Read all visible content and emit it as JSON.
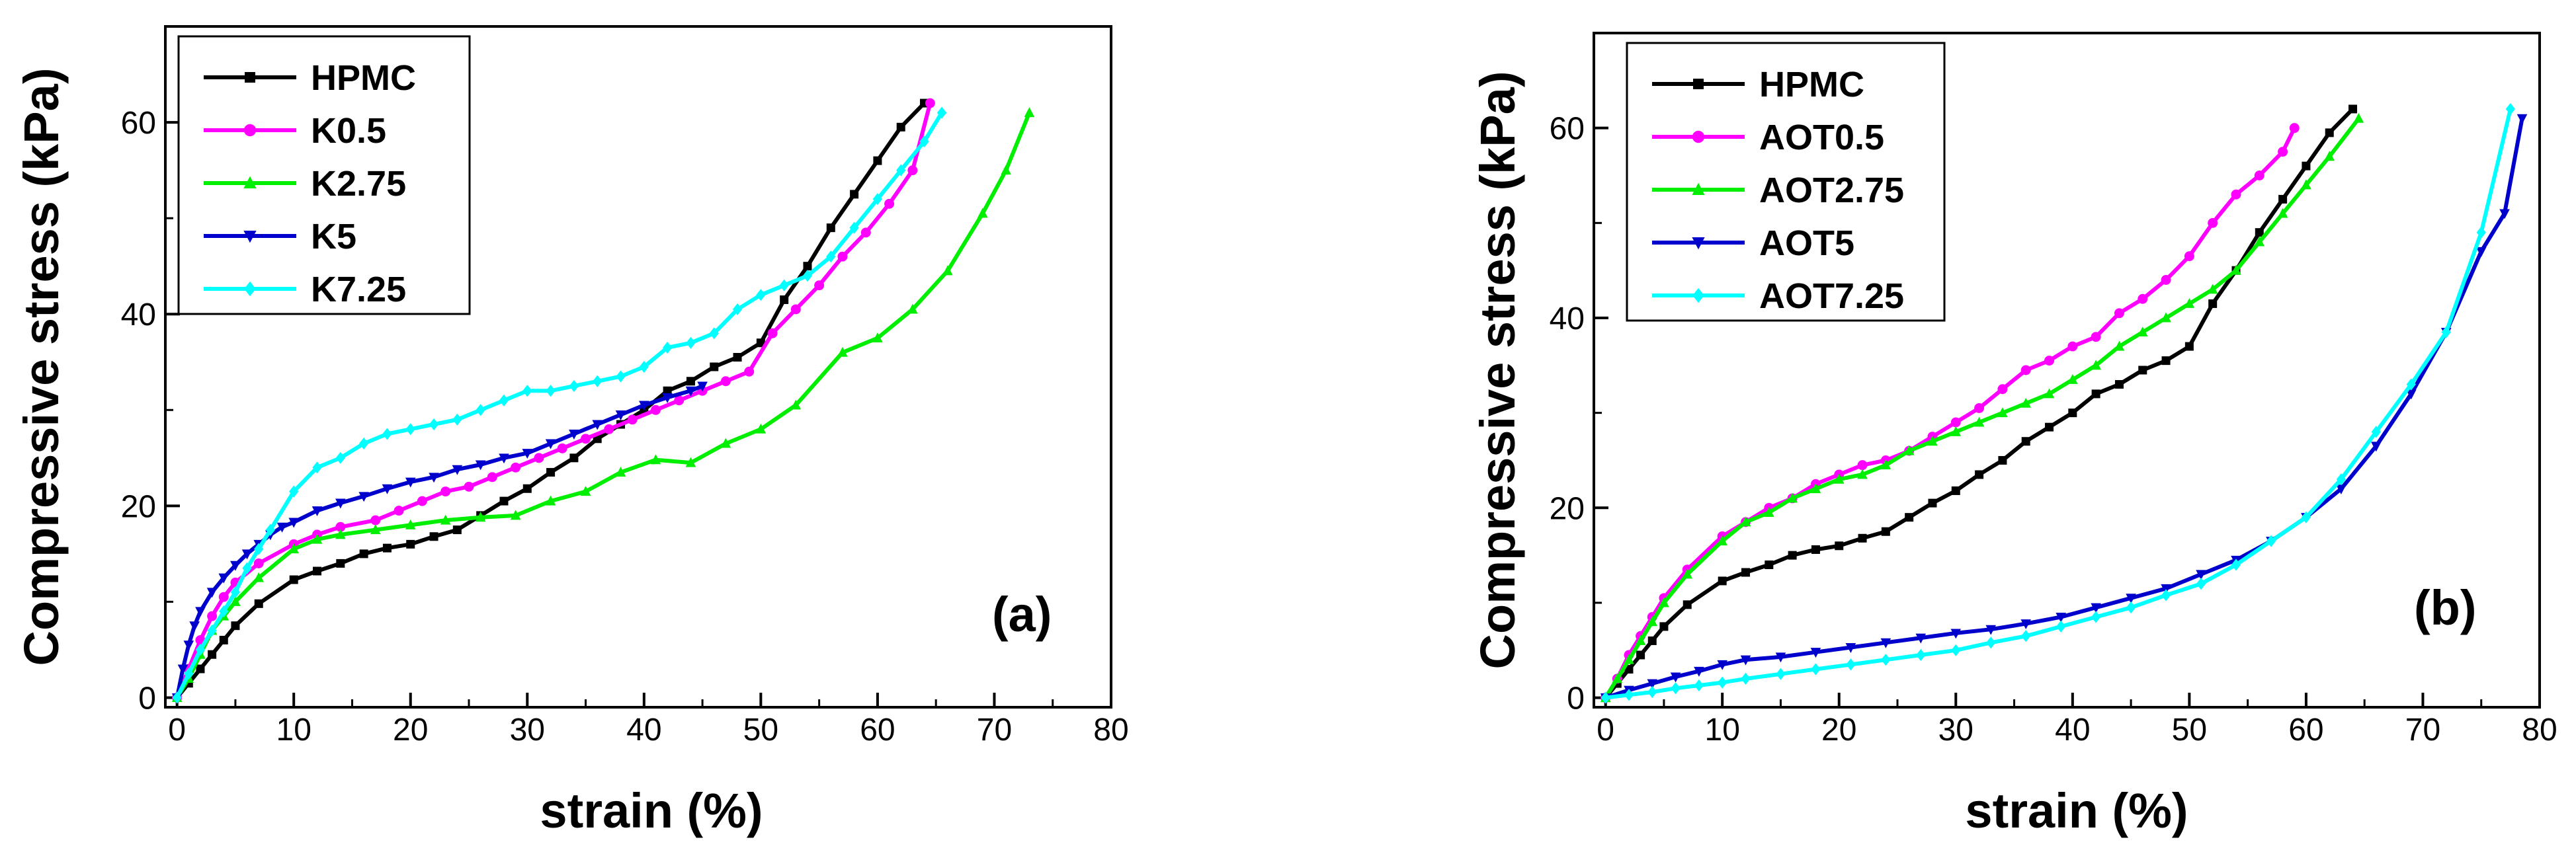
{
  "chart_data": [
    {
      "type": "line",
      "panel_label": "(a)",
      "xlabel": "strain (%)",
      "ylabel": "Compressive stress (kPa)",
      "xlim": [
        -1,
        80
      ],
      "ylim": [
        -1,
        70
      ],
      "xticks": [
        0,
        10,
        20,
        30,
        40,
        50,
        60,
        70,
        80
      ],
      "yticks": [
        0,
        20,
        40,
        60
      ],
      "legend_position": "top-left",
      "series": [
        {
          "name": "HPMC",
          "color": "#000000",
          "marker": "square",
          "x": [
            0,
            1,
            2,
            3,
            4,
            5,
            7,
            10,
            12,
            14,
            16,
            18,
            20,
            22,
            24,
            26,
            28,
            30,
            32,
            34,
            36,
            38,
            40,
            42,
            44,
            46,
            48,
            50,
            52,
            54,
            56,
            58,
            60,
            62,
            64
          ],
          "y": [
            0,
            1.5,
            3,
            4.5,
            6,
            7.5,
            9.8,
            12.3,
            13.2,
            14,
            15,
            15.6,
            16,
            16.8,
            17.5,
            19,
            20.5,
            21.8,
            23.5,
            25,
            27,
            28.5,
            30,
            32,
            33,
            34.5,
            35.5,
            37,
            41.5,
            45,
            49,
            52.5,
            56,
            59.5,
            62
          ]
        },
        {
          "name": "K0.5",
          "color": "#ff00ff",
          "marker": "circle",
          "x": [
            0,
            1,
            2,
            3,
            4,
            5,
            7,
            10,
            12,
            14,
            17,
            19,
            21,
            23,
            25,
            27,
            29,
            31,
            33,
            35,
            37,
            39,
            41,
            43,
            45,
            47,
            49,
            51,
            53,
            55,
            57,
            59,
            61,
            63,
            64.5
          ],
          "y": [
            0,
            3,
            6,
            8.5,
            10.5,
            12,
            14,
            16,
            17,
            17.8,
            18.5,
            19.5,
            20.5,
            21.5,
            22,
            23,
            24,
            25,
            26,
            27,
            28,
            29,
            30,
            31,
            32,
            33,
            34,
            38,
            40.5,
            43,
            46,
            48.5,
            51.5,
            55,
            62
          ]
        },
        {
          "name": "K2.75",
          "color": "#00ee00",
          "marker": "triangle-up",
          "x": [
            0,
            1,
            2,
            3,
            4,
            5,
            7,
            10,
            12,
            14,
            17,
            20,
            23,
            26,
            29,
            32,
            35,
            38,
            41,
            44,
            47,
            50,
            53,
            57,
            60,
            63,
            66,
            69,
            71,
            73
          ],
          "y": [
            0,
            2,
            4.5,
            7,
            8.5,
            10,
            12.5,
            15.5,
            16.5,
            17,
            17.5,
            18,
            18.5,
            18.8,
            19,
            20.5,
            21.5,
            23.5,
            24.8,
            24.5,
            26.5,
            28,
            30.5,
            36,
            37.5,
            40.5,
            44.5,
            50.5,
            55,
            61
          ]
        },
        {
          "name": "K5",
          "color": "#0000cd",
          "marker": "triangle-down",
          "x": [
            0,
            0.5,
            1,
            1.5,
            2,
            3,
            4,
            5,
            6,
            7,
            8,
            9,
            10,
            12,
            14,
            16,
            18,
            20,
            22,
            24,
            26,
            28,
            30,
            32,
            34,
            36,
            38,
            40,
            42,
            44,
            45
          ],
          "y": [
            0,
            3,
            5.5,
            7.5,
            9,
            11,
            12.5,
            13.8,
            15,
            16,
            17,
            17.8,
            18.3,
            19.5,
            20.3,
            21,
            21.8,
            22.5,
            23,
            23.8,
            24.3,
            25,
            25.5,
            26.5,
            27.5,
            28.5,
            29.5,
            30.5,
            31.3,
            32,
            32.5
          ]
        },
        {
          "name": "K7.25",
          "color": "#00ffff",
          "marker": "diamond",
          "x": [
            0,
            1,
            2,
            3,
            4,
            5,
            6,
            7,
            8,
            10,
            12,
            14,
            16,
            18,
            20,
            22,
            24,
            26,
            28,
            30,
            32,
            34,
            36,
            38,
            40,
            42,
            44,
            46,
            48,
            50,
            52,
            54,
            56,
            58,
            60,
            62,
            64,
            65.5
          ],
          "y": [
            0,
            2.5,
            5,
            7,
            9,
            11,
            13.5,
            15.5,
            17.5,
            21.5,
            24,
            25,
            26.5,
            27.5,
            28,
            28.5,
            29,
            30,
            31,
            32,
            32,
            32.5,
            33,
            33.5,
            34.5,
            36.5,
            37,
            38,
            40.5,
            42,
            43,
            44,
            46,
            49,
            52,
            55,
            58,
            61
          ]
        }
      ]
    },
    {
      "type": "line",
      "panel_label": "(b)",
      "xlabel": "strain (%)",
      "ylabel": "Compressive stress (kPa)",
      "xlim": [
        -1,
        80
      ],
      "ylim": [
        -1,
        70
      ],
      "xticks": [
        0,
        10,
        20,
        30,
        40,
        50,
        60,
        70,
        80
      ],
      "yticks": [
        0,
        20,
        40,
        60
      ],
      "legend_position": "top-left",
      "series": [
        {
          "name": "HPMC",
          "color": "#000000",
          "marker": "square",
          "x": [
            0,
            1,
            2,
            3,
            4,
            5,
            7,
            10,
            12,
            14,
            16,
            18,
            20,
            22,
            24,
            26,
            28,
            30,
            32,
            34,
            36,
            38,
            40,
            42,
            44,
            46,
            48,
            50,
            52,
            54,
            56,
            58,
            60,
            62,
            64
          ],
          "y": [
            0,
            1.5,
            3,
            4.5,
            6,
            7.5,
            9.8,
            12.3,
            13.2,
            14,
            15,
            15.6,
            16,
            16.8,
            17.5,
            19,
            20.5,
            21.8,
            23.5,
            25,
            27,
            28.5,
            30,
            32,
            33,
            34.5,
            35.5,
            37,
            41.5,
            45,
            49,
            52.5,
            56,
            59.5,
            62
          ]
        },
        {
          "name": "AOT0.5",
          "color": "#ff00ff",
          "marker": "circle",
          "x": [
            0,
            1,
            2,
            3,
            4,
            5,
            7,
            10,
            12,
            14,
            16,
            18,
            20,
            22,
            24,
            26,
            28,
            30,
            32,
            34,
            36,
            38,
            40,
            42,
            44,
            46,
            48,
            50,
            52,
            54,
            56,
            58,
            59
          ],
          "y": [
            0,
            2,
            4.5,
            6.5,
            8.5,
            10.5,
            13.5,
            17,
            18.5,
            20,
            21,
            22.5,
            23.5,
            24.5,
            25,
            26,
            27.5,
            29,
            30.5,
            32.5,
            34.5,
            35.5,
            37,
            38,
            40.5,
            42,
            44,
            46.5,
            50,
            53,
            55,
            57.5,
            60
          ]
        },
        {
          "name": "AOT2.75",
          "color": "#00ee00",
          "marker": "triangle-up",
          "x": [
            0,
            1,
            2,
            3,
            4,
            5,
            7,
            10,
            12,
            14,
            16,
            18,
            20,
            22,
            24,
            26,
            28,
            30,
            32,
            34,
            36,
            38,
            40,
            42,
            44,
            46,
            48,
            50,
            52,
            54,
            56,
            58,
            60,
            62,
            64.5
          ],
          "y": [
            0,
            2,
            4,
            6,
            8,
            10,
            13,
            16.5,
            18.5,
            19.5,
            21,
            22,
            23,
            23.5,
            24.5,
            26,
            27,
            28,
            29,
            30,
            31,
            32,
            33.5,
            35,
            37,
            38.5,
            40,
            41.5,
            43,
            45,
            48,
            51,
            54,
            57,
            61
          ]
        },
        {
          "name": "AOT5",
          "color": "#0000cd",
          "marker": "triangle-down",
          "x": [
            0,
            2,
            4,
            6,
            8,
            10,
            12,
            15,
            18,
            21,
            24,
            27,
            30,
            33,
            36,
            39,
            42,
            45,
            48,
            51,
            54,
            57,
            60,
            63,
            66,
            69,
            72,
            75,
            77,
            78.5
          ],
          "y": [
            0,
            0.8,
            1.5,
            2.2,
            2.8,
            3.5,
            4,
            4.3,
            4.8,
            5.3,
            5.8,
            6.3,
            6.8,
            7.2,
            7.8,
            8.5,
            9.5,
            10.5,
            11.5,
            13,
            14.5,
            16.5,
            19,
            22,
            26.5,
            32,
            38.5,
            47,
            51,
            61
          ]
        },
        {
          "name": "AOT7.25",
          "color": "#00ffff",
          "marker": "diamond",
          "x": [
            0,
            2,
            4,
            6,
            8,
            10,
            12,
            15,
            18,
            21,
            24,
            27,
            30,
            33,
            36,
            39,
            42,
            45,
            48,
            51,
            54,
            57,
            60,
            63,
            66,
            69,
            72,
            75,
            77.5
          ],
          "y": [
            0,
            0.3,
            0.6,
            1,
            1.3,
            1.6,
            2,
            2.5,
            3,
            3.5,
            4,
            4.5,
            5,
            5.8,
            6.5,
            7.5,
            8.5,
            9.5,
            10.8,
            12,
            14,
            16.5,
            19,
            23,
            28,
            33,
            38.5,
            49,
            62
          ]
        }
      ]
    }
  ]
}
